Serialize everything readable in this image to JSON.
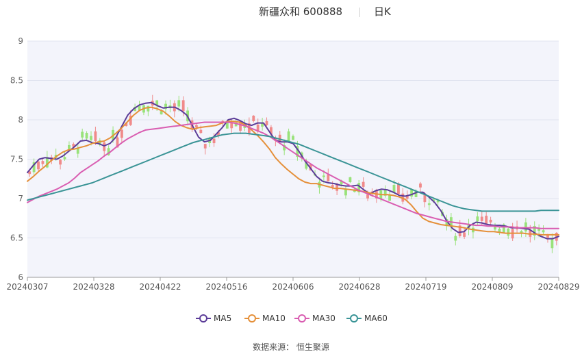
{
  "header": {
    "title": "新疆众和 600888",
    "period": "日K"
  },
  "footer": {
    "source": "数据来源： 恒生聚源"
  },
  "legend": [
    {
      "label": "MA5",
      "color": "#5b3c98"
    },
    {
      "label": "MA10",
      "color": "#e5903a"
    },
    {
      "label": "MA30",
      "color": "#d95db1"
    },
    {
      "label": "MA60",
      "color": "#3a9496"
    }
  ],
  "colors": {
    "up": "#f08a8a",
    "down": "#99e27a",
    "plot_bg": "#f3f4fb",
    "grid": "#e0e3ef"
  },
  "chart_data": {
    "type": "candlestick",
    "title": "新疆众和 600888",
    "ylim": [
      6,
      9
    ],
    "yticks": [
      6,
      6.5,
      7,
      7.5,
      8,
      8.5,
      9
    ],
    "xtick_labels": [
      "20240307",
      "20240328",
      "20240422",
      "20240516",
      "20240606",
      "20240628",
      "20240719",
      "20240809",
      "20240829"
    ],
    "candles": [],
    "ma": {
      "MA5": [
        7.33,
        7.42,
        7.5,
        7.52,
        7.51,
        7.5,
        7.54,
        7.6,
        7.66,
        7.73,
        7.74,
        7.71,
        7.7,
        7.67,
        7.7,
        7.78,
        7.92,
        8.06,
        8.14,
        8.19,
        8.21,
        8.22,
        8.18,
        8.15,
        8.16,
        8.16,
        8.12,
        8.06,
        7.92,
        7.78,
        7.72,
        7.74,
        7.82,
        7.9,
        8.0,
        8.02,
        7.99,
        7.95,
        7.93,
        7.96,
        7.96,
        7.85,
        7.74,
        7.72,
        7.72,
        7.7,
        7.6,
        7.48,
        7.38,
        7.28,
        7.22,
        7.2,
        7.19,
        7.17,
        7.16,
        7.16,
        7.17,
        7.11,
        7.06,
        7.1,
        7.12,
        7.11,
        7.08,
        7.04,
        7.03,
        7.05,
        7.08,
        7.08,
        7.02,
        6.95,
        6.85,
        6.72,
        6.62,
        6.57,
        6.58,
        6.66,
        6.7,
        6.69,
        6.67,
        6.66,
        6.66,
        6.65,
        6.63,
        6.63,
        6.62,
        6.61,
        6.56,
        6.52,
        6.49,
        6.49,
        6.52
      ],
      "MA10": [
        7.22,
        7.28,
        7.35,
        7.41,
        7.48,
        7.54,
        7.59,
        7.62,
        7.63,
        7.65,
        7.67,
        7.7,
        7.72,
        7.73,
        7.77,
        7.83,
        7.9,
        7.98,
        8.06,
        8.12,
        8.15,
        8.16,
        8.14,
        8.11,
        8.05,
        7.98,
        7.93,
        7.9,
        7.88,
        7.9,
        7.91,
        7.92,
        7.93,
        7.96,
        7.98,
        7.98,
        7.97,
        7.93,
        7.87,
        7.8,
        7.72,
        7.63,
        7.52,
        7.44,
        7.37,
        7.31,
        7.25,
        7.21,
        7.19,
        7.19,
        7.17,
        7.15,
        7.13,
        7.13,
        7.12,
        7.11,
        7.1,
        7.09,
        7.07,
        7.06,
        7.05,
        7.05,
        7.04,
        7.02,
        6.99,
        6.92,
        6.83,
        6.75,
        6.71,
        6.69,
        6.67,
        6.66,
        6.65,
        6.64,
        6.63,
        6.61,
        6.6,
        6.59,
        6.58,
        6.58,
        6.57,
        6.56,
        6.56,
        6.56,
        6.56,
        6.55,
        6.55,
        6.54,
        6.54,
        6.54,
        6.54
      ],
      "MA30": [
        6.95,
        6.99,
        7.03,
        7.06,
        7.09,
        7.12,
        7.16,
        7.2,
        7.26,
        7.33,
        7.38,
        7.43,
        7.48,
        7.54,
        7.59,
        7.65,
        7.71,
        7.76,
        7.8,
        7.84,
        7.87,
        7.88,
        7.89,
        7.9,
        7.91,
        7.92,
        7.93,
        7.94,
        7.95,
        7.96,
        7.97,
        7.97,
        7.97,
        7.97,
        7.97,
        7.96,
        7.94,
        7.92,
        7.89,
        7.86,
        7.83,
        7.79,
        7.74,
        7.69,
        7.64,
        7.59,
        7.54,
        7.49,
        7.44,
        7.39,
        7.35,
        7.31,
        7.27,
        7.23,
        7.19,
        7.15,
        7.11,
        7.08,
        7.05,
        7.02,
        6.99,
        6.96,
        6.93,
        6.9,
        6.87,
        6.84,
        6.81,
        6.79,
        6.77,
        6.75,
        6.73,
        6.71,
        6.7,
        6.69,
        6.68,
        6.67,
        6.66,
        6.66,
        6.65,
        6.65,
        6.64,
        6.64,
        6.64,
        6.63,
        6.63,
        6.63,
        6.63,
        6.62,
        6.62,
        6.62,
        6.62
      ],
      "MA60": [
        6.98,
        7.0,
        7.02,
        7.04,
        7.06,
        7.08,
        7.1,
        7.12,
        7.14,
        7.16,
        7.18,
        7.2,
        7.23,
        7.26,
        7.29,
        7.32,
        7.35,
        7.38,
        7.41,
        7.44,
        7.47,
        7.5,
        7.53,
        7.56,
        7.59,
        7.62,
        7.65,
        7.68,
        7.71,
        7.73,
        7.75,
        7.77,
        7.79,
        7.81,
        7.82,
        7.83,
        7.83,
        7.83,
        7.82,
        7.81,
        7.8,
        7.79,
        7.77,
        7.75,
        7.73,
        7.71,
        7.69,
        7.66,
        7.63,
        7.6,
        7.57,
        7.54,
        7.51,
        7.48,
        7.45,
        7.42,
        7.39,
        7.36,
        7.33,
        7.3,
        7.27,
        7.24,
        7.21,
        7.18,
        7.15,
        7.12,
        7.09,
        7.06,
        7.03,
        7.0,
        6.97,
        6.94,
        6.91,
        6.89,
        6.87,
        6.86,
        6.85,
        6.84,
        6.84,
        6.84,
        6.84,
        6.84,
        6.84,
        6.84,
        6.84,
        6.84,
        6.84,
        6.85,
        6.85,
        6.85,
        6.85
      ]
    }
  }
}
